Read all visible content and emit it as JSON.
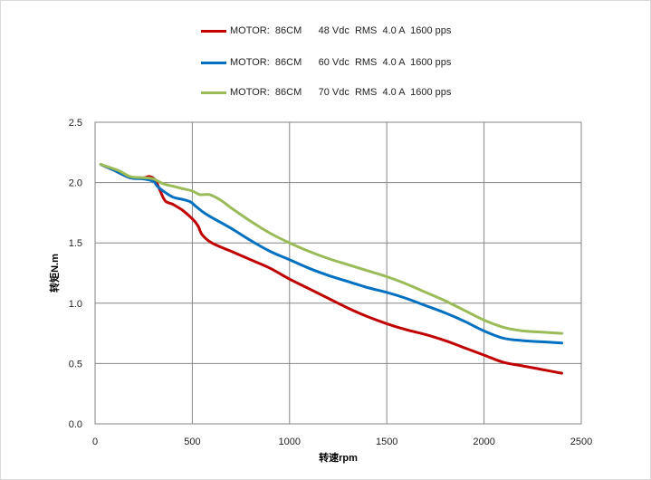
{
  "chart_data": {
    "type": "line",
    "title": "",
    "xlabel": "转速rpm",
    "ylabel": "转矩N.m",
    "xlim": [
      0,
      2500
    ],
    "ylim": [
      0,
      2.5
    ],
    "x_ticks": [
      "0",
      "500",
      "1000",
      "1500",
      "2000",
      "2500"
    ],
    "y_ticks": [
      "0.0",
      "0.5",
      "1.0",
      "1.5",
      "2.0",
      "2.5"
    ],
    "x_tick_values": [
      0,
      500,
      1000,
      1500,
      2000,
      2500
    ],
    "y_tick_values": [
      0,
      0.5,
      1.0,
      1.5,
      2.0,
      2.5
    ],
    "grid": true,
    "legend_position": "top",
    "series": [
      {
        "name": "MOTOR:  86CM      48 Vdc  RMS  4.0 A  1600 pps",
        "color": "#c00000",
        "points": [
          [
            30,
            2.15
          ],
          [
            100,
            2.1
          ],
          [
            180,
            2.04
          ],
          [
            250,
            2.04
          ],
          [
            280,
            2.05
          ],
          [
            310,
            2.02
          ],
          [
            330,
            1.95
          ],
          [
            360,
            1.85
          ],
          [
            400,
            1.82
          ],
          [
            450,
            1.77
          ],
          [
            500,
            1.7
          ],
          [
            530,
            1.64
          ],
          [
            550,
            1.57
          ],
          [
            600,
            1.5
          ],
          [
            700,
            1.43
          ],
          [
            800,
            1.36
          ],
          [
            900,
            1.29
          ],
          [
            1000,
            1.2
          ],
          [
            1100,
            1.12
          ],
          [
            1200,
            1.04
          ],
          [
            1300,
            0.96
          ],
          [
            1400,
            0.89
          ],
          [
            1500,
            0.83
          ],
          [
            1600,
            0.78
          ],
          [
            1700,
            0.74
          ],
          [
            1800,
            0.69
          ],
          [
            1900,
            0.63
          ],
          [
            2000,
            0.57
          ],
          [
            2100,
            0.51
          ],
          [
            2200,
            0.48
          ],
          [
            2300,
            0.45
          ],
          [
            2400,
            0.42
          ]
        ]
      },
      {
        "name": "MOTOR:  86CM      60 Vdc  RMS  4.0 A  1600 pps",
        "color": "#0070c0",
        "points": [
          [
            30,
            2.15
          ],
          [
            100,
            2.1
          ],
          [
            180,
            2.04
          ],
          [
            250,
            2.03
          ],
          [
            300,
            2.01
          ],
          [
            320,
            1.97
          ],
          [
            350,
            1.93
          ],
          [
            400,
            1.88
          ],
          [
            450,
            1.86
          ],
          [
            490,
            1.84
          ],
          [
            520,
            1.8
          ],
          [
            560,
            1.75
          ],
          [
            600,
            1.71
          ],
          [
            700,
            1.62
          ],
          [
            800,
            1.52
          ],
          [
            900,
            1.43
          ],
          [
            1000,
            1.36
          ],
          [
            1100,
            1.29
          ],
          [
            1200,
            1.23
          ],
          [
            1300,
            1.18
          ],
          [
            1400,
            1.13
          ],
          [
            1500,
            1.09
          ],
          [
            1600,
            1.04
          ],
          [
            1700,
            0.98
          ],
          [
            1800,
            0.92
          ],
          [
            1900,
            0.85
          ],
          [
            2000,
            0.77
          ],
          [
            2100,
            0.71
          ],
          [
            2200,
            0.69
          ],
          [
            2300,
            0.68
          ],
          [
            2400,
            0.67
          ]
        ]
      },
      {
        "name": "MOTOR:  86CM      70 Vdc  RMS  4.0 A  1600 pps",
        "color": "#9bbb59",
        "points": [
          [
            30,
            2.15
          ],
          [
            120,
            2.1
          ],
          [
            180,
            2.05
          ],
          [
            250,
            2.04
          ],
          [
            300,
            2.03
          ],
          [
            350,
            1.99
          ],
          [
            400,
            1.97
          ],
          [
            450,
            1.95
          ],
          [
            500,
            1.93
          ],
          [
            540,
            1.9
          ],
          [
            590,
            1.9
          ],
          [
            650,
            1.85
          ],
          [
            700,
            1.79
          ],
          [
            800,
            1.68
          ],
          [
            900,
            1.58
          ],
          [
            1000,
            1.5
          ],
          [
            1100,
            1.43
          ],
          [
            1200,
            1.37
          ],
          [
            1300,
            1.32
          ],
          [
            1400,
            1.27
          ],
          [
            1500,
            1.22
          ],
          [
            1600,
            1.16
          ],
          [
            1700,
            1.09
          ],
          [
            1800,
            1.02
          ],
          [
            1900,
            0.94
          ],
          [
            2000,
            0.86
          ],
          [
            2100,
            0.8
          ],
          [
            2200,
            0.77
          ],
          [
            2300,
            0.76
          ],
          [
            2400,
            0.75
          ]
        ]
      }
    ]
  }
}
